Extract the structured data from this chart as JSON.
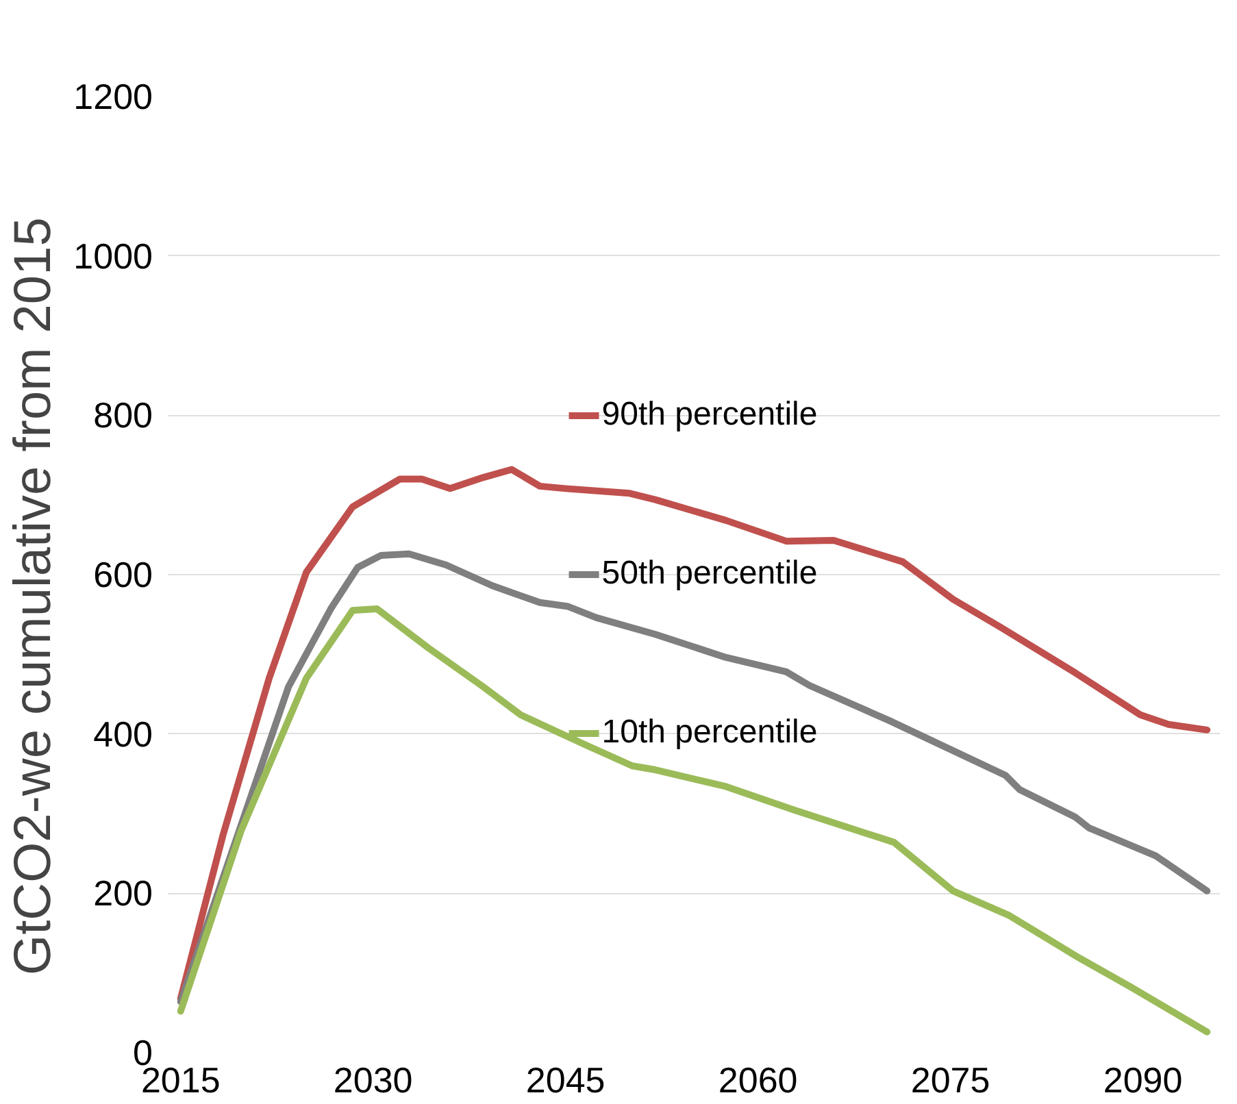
{
  "chart_data": {
    "type": "line",
    "ylabel": "GtCO2-we    cumulative from 2015",
    "xlim": [
      2014,
      2096
    ],
    "xticks": [
      2015,
      2030,
      2045,
      2060,
      2075,
      2090
    ],
    "ylim": [
      0,
      1200
    ],
    "legend": "center",
    "yticks": [
      0,
      200,
      400,
      600,
      800,
      1000,
      1200
    ],
    "grid": "y",
    "line_style": "solid",
    "series": [
      {
        "name": "90th percentile",
        "color": "#c0504d",
        "x": [
          2015,
          2018.3,
          2021.9,
          2024.8,
          2028.4,
          2032.1,
          2033.8,
          2036,
          2038.6,
          2040.8,
          2043,
          2045,
          2050,
          2052,
          2057.5,
          2062.2,
          2065.9,
          2071.3,
          2075.2,
          2078.9,
          2084.7,
          2089.8,
          2092,
          2095
        ],
        "values": [
          68,
          273,
          470,
          603,
          685,
          720,
          720,
          708,
          722,
          732,
          711,
          708,
          702,
          694,
          668,
          642,
          643,
          616,
          569,
          534,
          477,
          424,
          412,
          405
        ]
      },
      {
        "name": "50th percentile",
        "color": "#7f7f7f",
        "x": [
          2015,
          2019.7,
          2023.4,
          2026.7,
          2028.8,
          2030.6,
          2032.8,
          2035.7,
          2039.3,
          2043,
          2045.2,
          2047.4,
          2052,
          2057.5,
          2062.2,
          2064,
          2070.2,
          2079.3,
          2080.4,
          2084.7,
          2085.8,
          2091,
          2095
        ],
        "values": [
          64,
          285,
          459,
          557,
          609,
          624,
          626,
          612,
          586,
          565,
          560,
          546,
          525,
          496,
          478,
          461,
          417,
          348,
          330,
          296,
          282,
          247,
          203
        ]
      },
      {
        "name": "10th percentile",
        "color": "#9bbb59",
        "x": [
          2015,
          2019.7,
          2024.8,
          2028.4,
          2030.3,
          2034.3,
          2038.6,
          2041.5,
          2046.6,
          2050.2,
          2052,
          2057.5,
          2062.9,
          2070.6,
          2075.2,
          2079.6,
          2084.7,
          2089.1,
          2095
        ],
        "values": [
          52,
          278,
          470,
          555,
          557,
          508,
          459,
          424,
          386,
          360,
          355,
          334,
          304,
          264,
          203,
          172,
          122,
          82,
          26
        ]
      }
    ]
  }
}
